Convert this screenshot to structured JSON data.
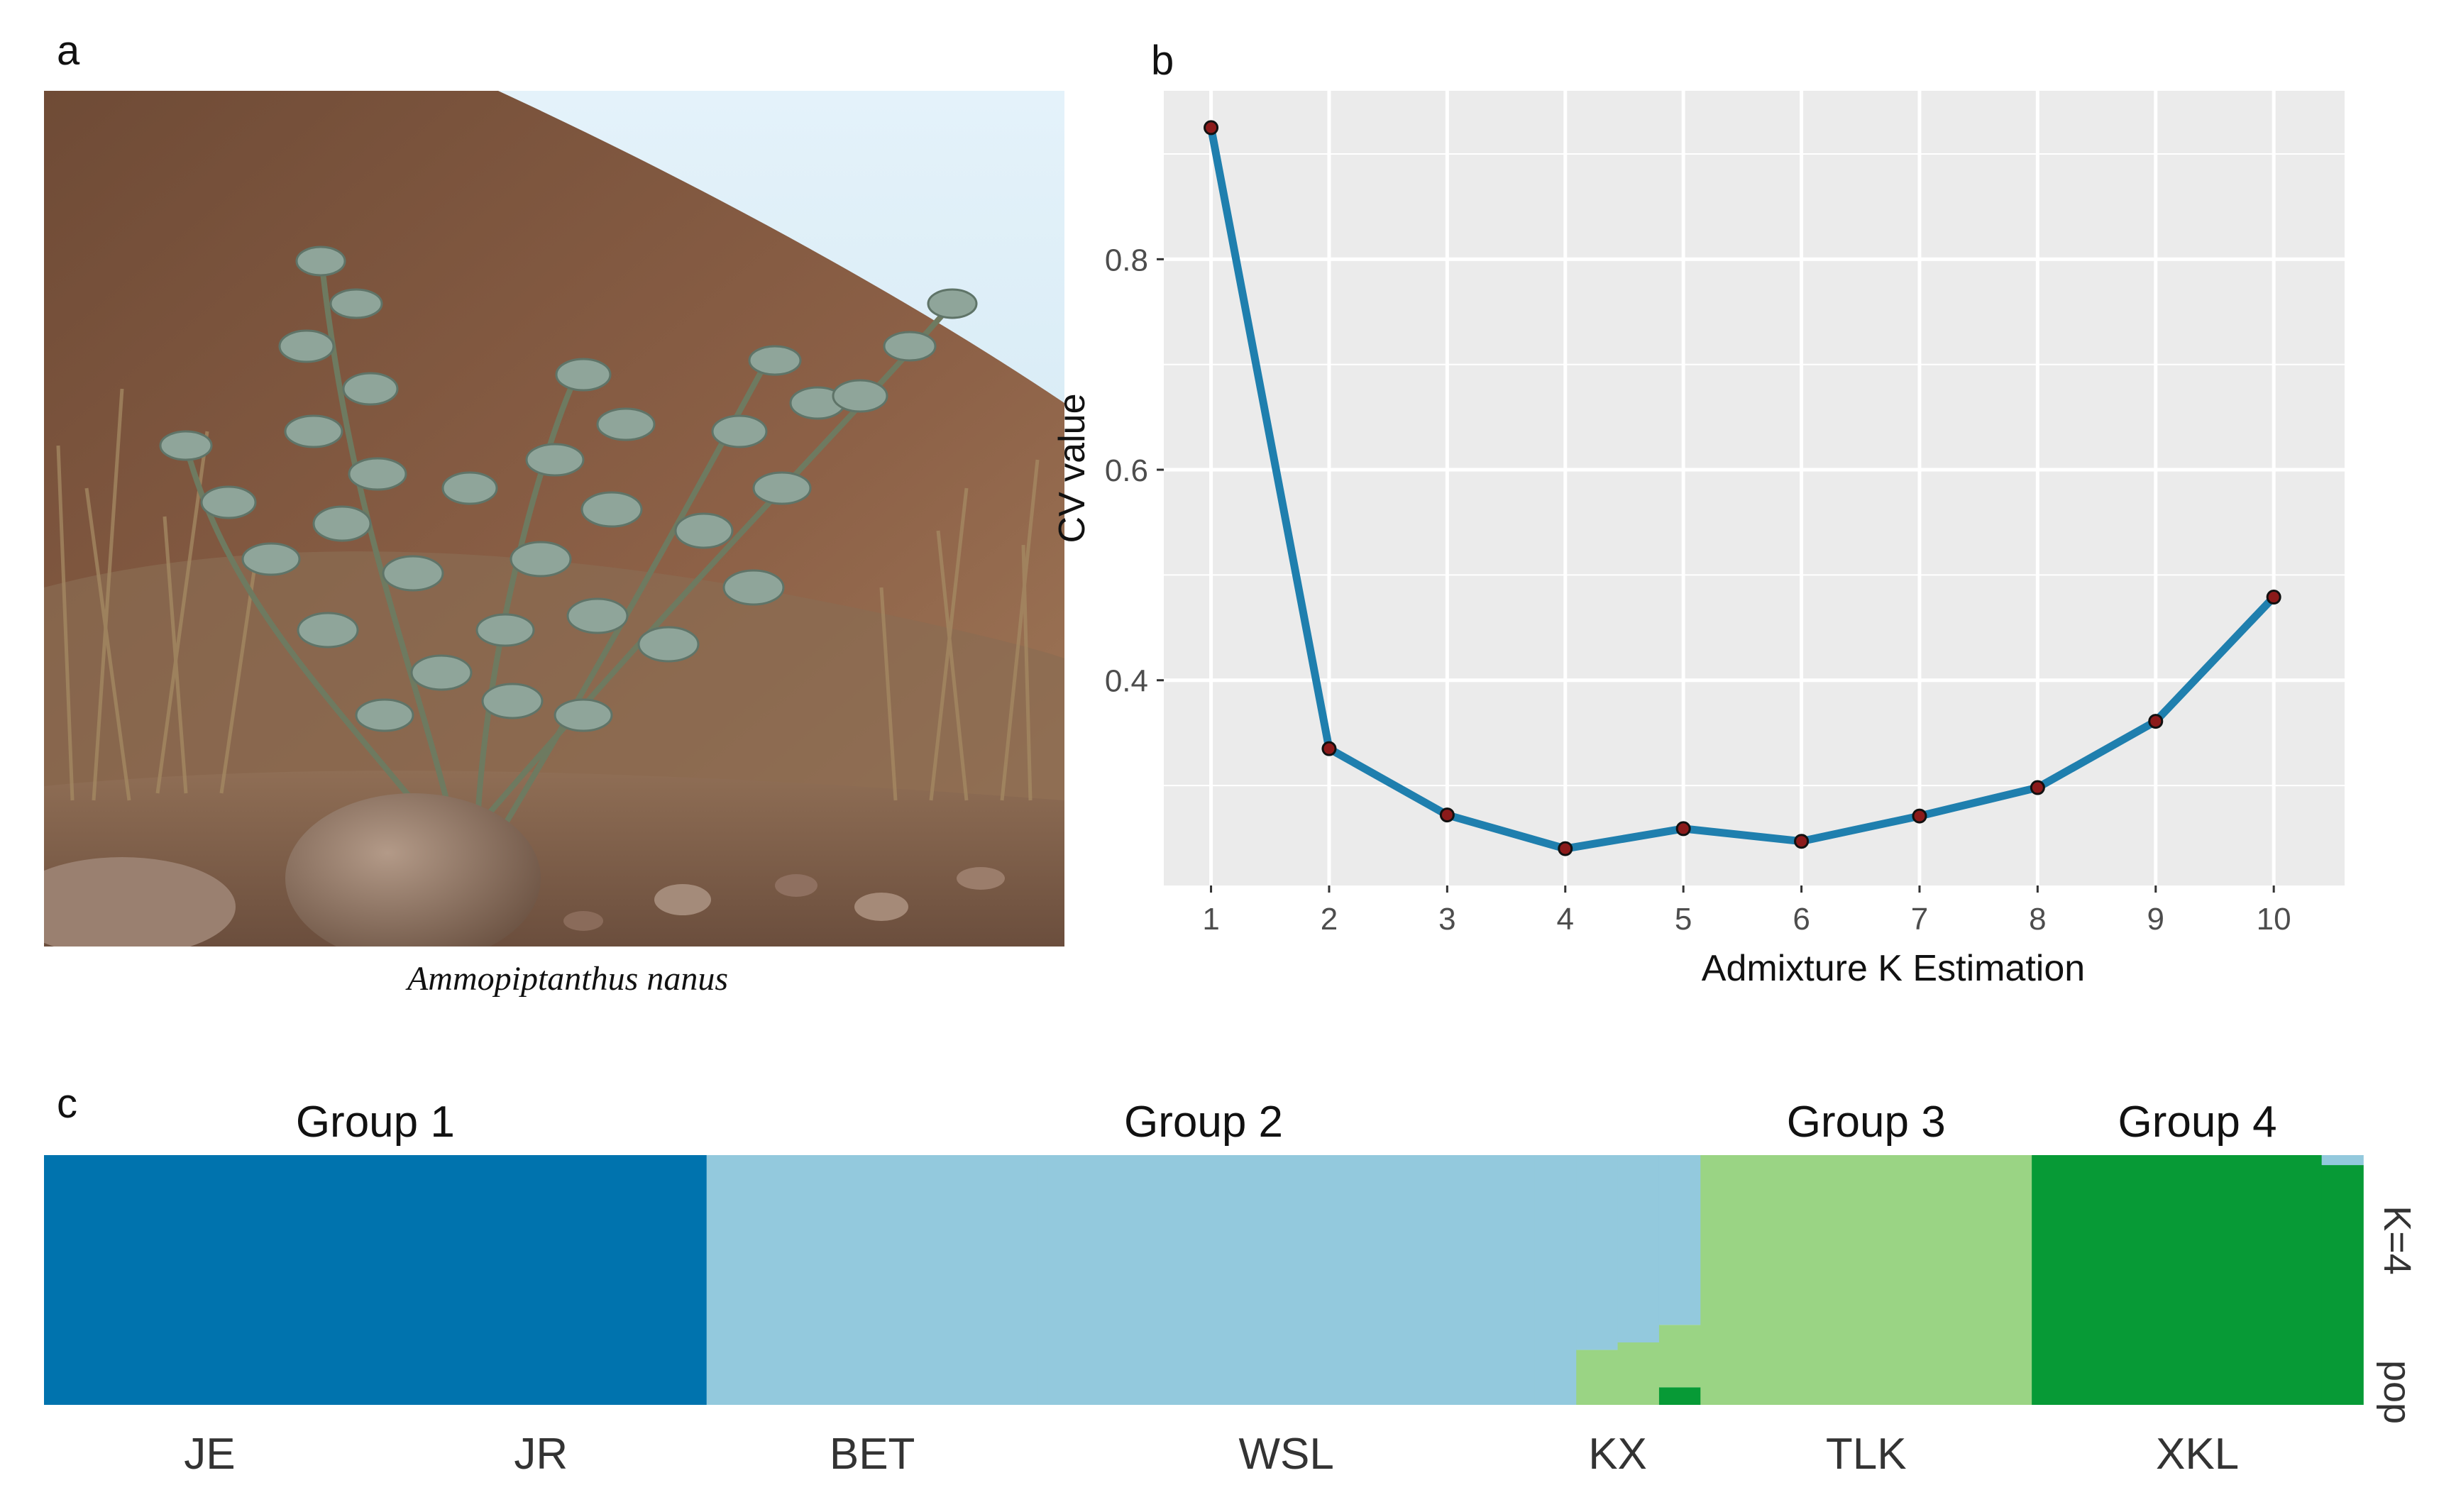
{
  "panel_labels": {
    "a": "a",
    "b": "b",
    "c": "c"
  },
  "photo": {
    "caption": "Ammopiptanthus nanus",
    "colors": {
      "sky": "#d9eef8",
      "hill": "#8a5a3c",
      "soil": "#7a5a44",
      "leaf": "#8fa59a",
      "rock": "#9a8070"
    }
  },
  "chart_data": [
    {
      "type": "line",
      "x": [
        1,
        2,
        3,
        4,
        5,
        6,
        7,
        8,
        9,
        10
      ],
      "y": [
        0.925,
        0.335,
        0.272,
        0.24,
        0.259,
        0.247,
        0.271,
        0.298,
        0.361,
        0.479
      ],
      "xlabel": "Admixture K Estimation",
      "ylabel": "CV value",
      "xticks": [
        "1",
        "2",
        "3",
        "4",
        "5",
        "6",
        "7",
        "8",
        "9",
        "10"
      ],
      "yticks": [
        "0.4",
        "0.6",
        "0.8"
      ],
      "ytick_values": [
        0.4,
        0.6,
        0.8
      ],
      "xlim": [
        0.6,
        10.6
      ],
      "ylim": [
        0.205,
        0.96
      ],
      "grid": true,
      "colors": {
        "line": "#1f7fae",
        "point": "#8b1a1a",
        "panel": "#ebebeb",
        "grid": "#ffffff"
      }
    },
    {
      "type": "bar",
      "subtype": "stacked-admixture",
      "groups": [
        "Group 1",
        "Group 2",
        "Group 3",
        "Group 4"
      ],
      "populations": [
        "JE",
        "JR",
        "BET",
        "WSL",
        "KX",
        "TLK",
        "XKL"
      ],
      "k_label": "K=4",
      "pop_label": "pop",
      "clusters": [
        {
          "name": "cluster-1",
          "color": "#0073ae"
        },
        {
          "name": "cluster-2",
          "color": "#93c9dd"
        },
        {
          "name": "cluster-3",
          "color": "#9ad484"
        },
        {
          "name": "cluster-4",
          "color": "#079a36"
        }
      ],
      "segments": [
        {
          "pop": "JE",
          "n": 8,
          "q": [
            1.0,
            0.0,
            0.0,
            0.0
          ]
        },
        {
          "pop": "JR",
          "n": 8,
          "q": [
            1.0,
            0.0,
            0.0,
            0.0
          ]
        },
        {
          "pop": "BET",
          "n": 8,
          "q": [
            0.0,
            1.0,
            0.0,
            0.0
          ]
        },
        {
          "pop": "WSL",
          "n": 12,
          "q": [
            0.0,
            1.0,
            0.0,
            0.0
          ]
        },
        {
          "pop": "KX",
          "n": 1,
          "q": [
            0.0,
            1.0,
            0.0,
            0.0
          ]
        },
        {
          "pop": "KX",
          "n": 1,
          "q": [
            0.0,
            0.78,
            0.22,
            0.0
          ]
        },
        {
          "pop": "KX",
          "n": 1,
          "q": [
            0.0,
            0.75,
            0.25,
            0.0
          ]
        },
        {
          "pop": "KX",
          "n": 1,
          "q": [
            0.0,
            0.68,
            0.25,
            0.07
          ]
        },
        {
          "pop": "TLK",
          "n": 8,
          "q": [
            0.0,
            0.0,
            1.0,
            0.0
          ]
        },
        {
          "pop": "XKL",
          "n": 7,
          "q": [
            0.0,
            0.0,
            0.0,
            1.0
          ]
        },
        {
          "pop": "XKL",
          "n": 1,
          "q": [
            0.0,
            0.04,
            0.0,
            0.96
          ]
        }
      ]
    }
  ]
}
